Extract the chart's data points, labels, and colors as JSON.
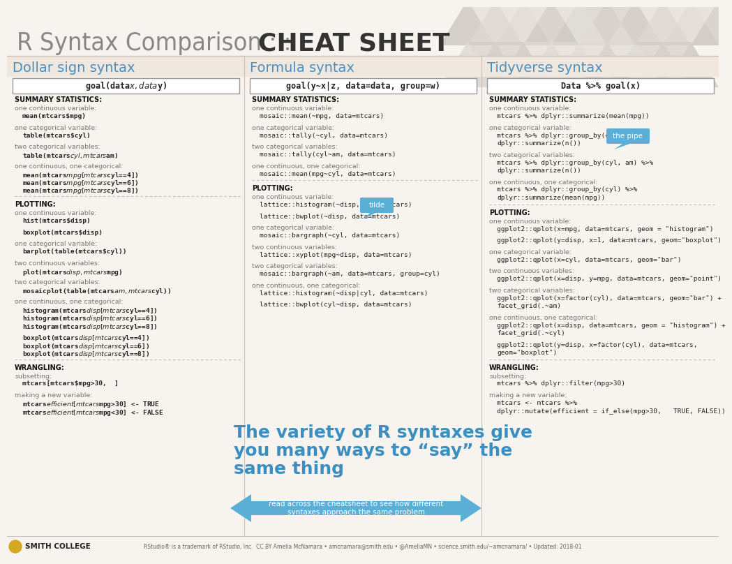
{
  "bg_color": "#f7f3ee",
  "title_light": "R Syntax Comparison : : ",
  "title_bold": "CHEAT SHEET",
  "col_titles": [
    "Dollar sign syntax",
    "Formula syntax",
    "Tidyverse syntax"
  ],
  "col_boxes": [
    "goal(data$x,  data$y)",
    "goal(y~x|z, data=data, group=w)",
    "Data %>% goal(x)"
  ],
  "blue_title": "#4a8fbf",
  "mono_dark": "#222222",
  "mono_blue": "#5577aa",
  "label_gray": "#777777",
  "section_color": "#111111",
  "divider_color": "#bbbbbb",
  "bubble_color": "#5bafd6",
  "arrow_color": "#5bafd6",
  "big_text_color": "#3a8fc0",
  "col1_content": [
    {
      "t": "S",
      "tx": "SUMMARY STATISTICS:"
    },
    {
      "t": "L",
      "tx": "one continuous variable:"
    },
    {
      "t": "C",
      "tx": "mean(mtcars$mpg)"
    },
    {
      "t": "G"
    },
    {
      "t": "L",
      "tx": "one categorical variable:"
    },
    {
      "t": "C",
      "tx": "table(mtcars$cyl)"
    },
    {
      "t": "G"
    },
    {
      "t": "L",
      "tx": "two categorical variables:"
    },
    {
      "t": "C",
      "tx": "table(mtcars$cyl,  mtcars$am)"
    },
    {
      "t": "G"
    },
    {
      "t": "L",
      "tx": "one continuous, one categorical:"
    },
    {
      "t": "C",
      "tx": "mean(mtcars$mpg[mtcars$cyl==4])"
    },
    {
      "t": "C",
      "tx": "mean(mtcars$mpg[mtcars$cyl==6])"
    },
    {
      "t": "C",
      "tx": "mean(mtcars$mpg[mtcars$cyl==8])"
    },
    {
      "t": "D"
    },
    {
      "t": "S",
      "tx": "PLOTTING:"
    },
    {
      "t": "L",
      "tx": "one continuous variable:"
    },
    {
      "t": "C",
      "tx": "hist(mtcars$disp)"
    },
    {
      "t": "G"
    },
    {
      "t": "C",
      "tx": "boxplot(mtcars$disp)"
    },
    {
      "t": "G"
    },
    {
      "t": "L",
      "tx": "one categorical variable:"
    },
    {
      "t": "C",
      "tx": "barplot(table(mtcars$cyl))"
    },
    {
      "t": "G"
    },
    {
      "t": "L",
      "tx": "two continuous variables:"
    },
    {
      "t": "C",
      "tx": "plot(mtcars$disp,  mtcars$mpg)"
    },
    {
      "t": "G"
    },
    {
      "t": "L",
      "tx": "two categorical variables:"
    },
    {
      "t": "C",
      "tx": "mosaicplot(table(mtcars$am,  mtcars$cyl))"
    },
    {
      "t": "G"
    },
    {
      "t": "L",
      "tx": "one continuous, one categorical:"
    },
    {
      "t": "C",
      "tx": "histogram(mtcars$disp[mtcars$cyl==4])"
    },
    {
      "t": "C",
      "tx": "histogram(mtcars$disp[mtcars$cyl==6])"
    },
    {
      "t": "C",
      "tx": "histogram(mtcars$disp[mtcars$cyl==8])"
    },
    {
      "t": "G"
    },
    {
      "t": "C",
      "tx": "boxplot(mtcars$disp[mtcars$cyl==4])"
    },
    {
      "t": "C",
      "tx": "boxplot(mtcars$disp[mtcars$cyl==6])"
    },
    {
      "t": "C",
      "tx": "boxplot(mtcars$disp[mtcars$cyl==8])"
    },
    {
      "t": "D"
    },
    {
      "t": "S",
      "tx": "WRANGLING:"
    },
    {
      "t": "L",
      "tx": "subsetting:"
    },
    {
      "t": "C",
      "tx": "mtcars[mtcars$mpg>30,  ]"
    },
    {
      "t": "G"
    },
    {
      "t": "L",
      "tx": "making a new variable:"
    },
    {
      "t": "C",
      "tx": "mtcars$efficient[mtcars$mpg>30] <- TRUE"
    },
    {
      "t": "C",
      "tx": "mtcars$efficient[mtcars$mpg<30] <- FALSE"
    }
  ],
  "col2_content": [
    {
      "t": "S",
      "tx": "SUMMARY STATISTICS:"
    },
    {
      "t": "L",
      "tx": "one continuous variable:"
    },
    {
      "t": "M",
      "tx": "mosaic::",
      "tx2": "mean(~mpg, data=mtcars)"
    },
    {
      "t": "G"
    },
    {
      "t": "L",
      "tx": "one categorical variable:"
    },
    {
      "t": "M",
      "tx": "mosaic::",
      "tx2": "tally(~cyl, data=mtcars)"
    },
    {
      "t": "G"
    },
    {
      "t": "L",
      "tx": "two categorical variables:"
    },
    {
      "t": "M",
      "tx": "mosaic::",
      "tx2": "tally(cyl~am, data=mtcars)"
    },
    {
      "t": "G"
    },
    {
      "t": "L",
      "tx": "one continuous, one categorical:"
    },
    {
      "t": "M",
      "tx": "mosaic::",
      "tx2": "mean(mpg~cyl, data=mtcars)"
    },
    {
      "t": "D"
    },
    {
      "t": "S",
      "tx": "PLOTTING:"
    },
    {
      "t": "L",
      "tx": "one continuous variable:"
    },
    {
      "t": "M",
      "tx": "lattice::",
      "tx2": "histogram(~disp, data=mtcars)"
    },
    {
      "t": "G"
    },
    {
      "t": "M",
      "tx": "lattice::",
      "tx2": "bwplot(~disp, data=mtcars)"
    },
    {
      "t": "G"
    },
    {
      "t": "L",
      "tx": "one categorical variable:"
    },
    {
      "t": "M",
      "tx": "mosaic::",
      "tx2": "bargraph(~cyl, data=mtcars)"
    },
    {
      "t": "G"
    },
    {
      "t": "L",
      "tx": "two continuous variables:"
    },
    {
      "t": "M",
      "tx": "lattice::",
      "tx2": "xyplot(mpg~disp, data=mtcars)"
    },
    {
      "t": "G"
    },
    {
      "t": "L",
      "tx": "two categorical variables:"
    },
    {
      "t": "M",
      "tx": "mosaic::",
      "tx2": "bargraph(~am, data=mtcars, group=cyl)"
    },
    {
      "t": "G"
    },
    {
      "t": "L",
      "tx": "one continuous, one categorical:"
    },
    {
      "t": "M",
      "tx": "lattice::",
      "tx2": "histogram(~disp|cyl, data=mtcars)"
    },
    {
      "t": "G"
    },
    {
      "t": "M",
      "tx": "lattice::",
      "tx2": "bwplot(cyl~disp, data=mtcars)"
    }
  ],
  "col3_content": [
    {
      "t": "S",
      "tx": "SUMMARY STATISTICS:"
    },
    {
      "t": "L",
      "tx": "one continuous variable:"
    },
    {
      "t": "P",
      "tx": "mtcars %>% dplyr::summarize(mean(mpg))"
    },
    {
      "t": "G"
    },
    {
      "t": "L",
      "tx": "one categorical variable:"
    },
    {
      "t": "P",
      "tx": "mtcars %>% dplyr::group_by(cyl) %>%"
    },
    {
      "t": "P",
      "tx": "dplyr::summarize(n())"
    },
    {
      "t": "G"
    },
    {
      "t": "L",
      "tx": "two categorical variables:"
    },
    {
      "t": "P",
      "tx": "mtcars %>% dplyr::group_by(cyl, am) %>%"
    },
    {
      "t": "P",
      "tx": "dplyr::summarize(n())"
    },
    {
      "t": "G"
    },
    {
      "t": "L",
      "tx": "one continuous, one categorical:"
    },
    {
      "t": "P",
      "tx": "mtcars %>% dplyr::group_by(cyl) %>%"
    },
    {
      "t": "P",
      "tx": "dplyr::summarize(mean(mpg))"
    },
    {
      "t": "D"
    },
    {
      "t": "S",
      "tx": "PLOTTING:"
    },
    {
      "t": "L",
      "tx": "one continuous variable:"
    },
    {
      "t": "P",
      "tx": "ggplot2::qplot(x=mpg, data=mtcars, geom = \"histogram\")"
    },
    {
      "t": "G"
    },
    {
      "t": "P",
      "tx": "ggplot2::qplot(y=disp, x=1, data=mtcars, geom=\"boxplot\")"
    },
    {
      "t": "G"
    },
    {
      "t": "L",
      "tx": "one categorical variable:"
    },
    {
      "t": "P",
      "tx": "ggplot2::qplot(x=cyl, data=mtcars, geom=\"bar\")"
    },
    {
      "t": "G"
    },
    {
      "t": "L",
      "tx": "two continuous variables:"
    },
    {
      "t": "P",
      "tx": "ggplot2::qplot(x=disp, y=mpg, data=mtcars, geom=\"point\")"
    },
    {
      "t": "G"
    },
    {
      "t": "L",
      "tx": "two categorical variables:"
    },
    {
      "t": "P",
      "tx": "ggplot2::qplot(x=factor(cyl), data=mtcars, geom=\"bar\") +"
    },
    {
      "t": "P",
      "tx": "facet_grid(.~am)"
    },
    {
      "t": "G"
    },
    {
      "t": "L",
      "tx": "one continuous, one categorical:"
    },
    {
      "t": "P",
      "tx": "ggplot2::qplot(x=disp, data=mtcars, geom = \"histogram\") +"
    },
    {
      "t": "P",
      "tx": "facet_grid(.~cyl)"
    },
    {
      "t": "G"
    },
    {
      "t": "P",
      "tx": "ggplot2::qplot(y=disp, x=factor(cyl), data=mtcars,"
    },
    {
      "t": "P",
      "tx": "geom=\"boxplot\")"
    },
    {
      "t": "D"
    },
    {
      "t": "S",
      "tx": "WRANGLING:"
    },
    {
      "t": "L",
      "tx": "subsetting:"
    },
    {
      "t": "P",
      "tx": "mtcars %>% dplyr::filter(mpg>30)"
    },
    {
      "t": "G"
    },
    {
      "t": "L",
      "tx": "making a new variable:"
    },
    {
      "t": "P",
      "tx": "mtcars <- mtcars %>%"
    },
    {
      "t": "P",
      "tx": "dplyr::mutate(efficient = if_else(mpg>30,   TRUE, FALSE))"
    }
  ],
  "big_text_line1": "The variety of R syntaxes give",
  "big_text_line2": "you many ways to “say” the",
  "big_text_line3": "same thing",
  "arrow_sub": "read across the cheatsheet to see how different\nsyntaxes approach the same problem",
  "arrow_sub_bold": "across",
  "tilde_text": "tilde",
  "pipe_text": "the pipe",
  "footer": "RStudio® is a trademark of RStudio, Inc.  CC BY Amelia McNamara • amcnamara@smith.edu • @AmeliaMN • science.smith.edu/~amcnamara/ • Updated: 2018-01"
}
